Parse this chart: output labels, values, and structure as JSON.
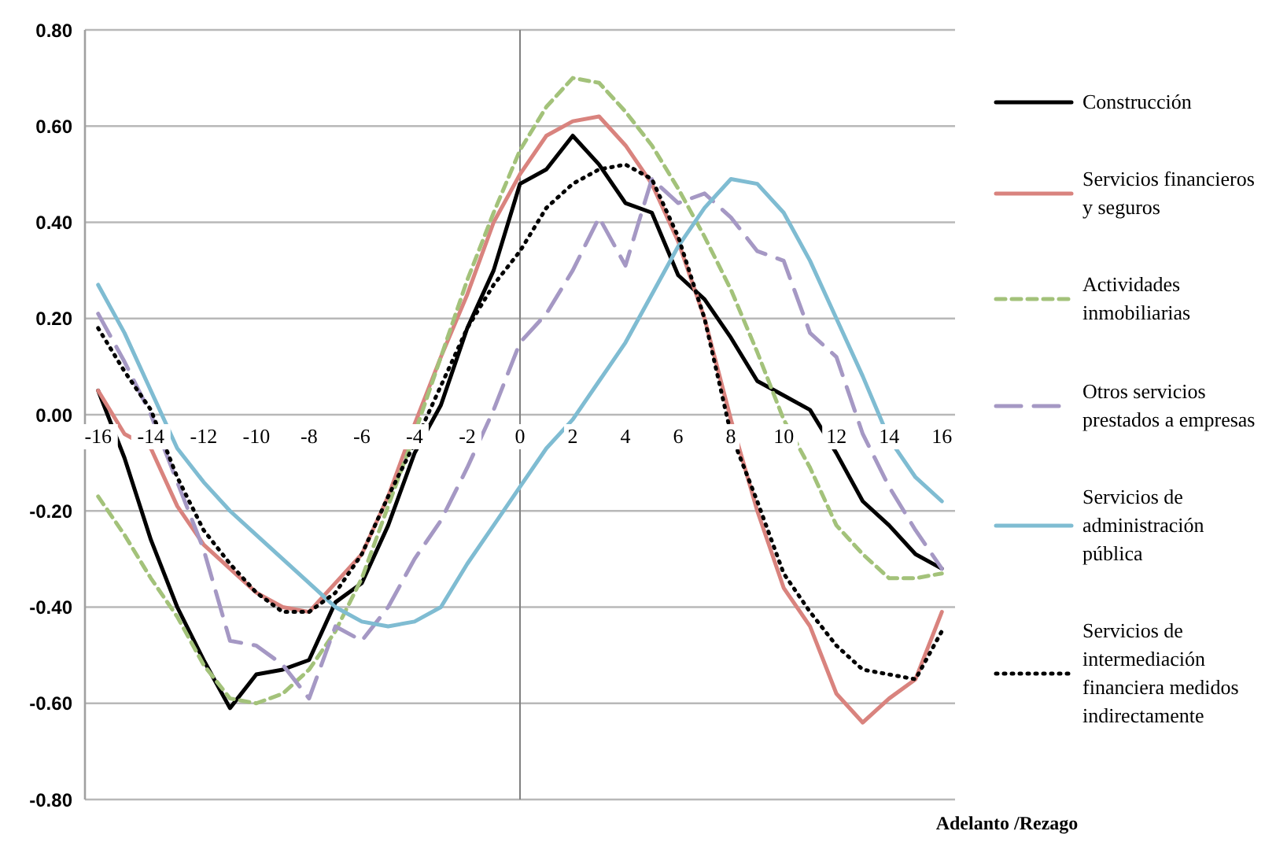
{
  "chart_data": {
    "type": "line",
    "xlabel": "Adelanto /Rezago",
    "x": [
      -16,
      -15,
      -14,
      -13,
      -12,
      -11,
      -10,
      -9,
      -8,
      -7,
      -6,
      -5,
      -4,
      -3,
      -2,
      -1,
      0,
      1,
      2,
      3,
      4,
      5,
      6,
      7,
      8,
      9,
      10,
      11,
      12,
      13,
      14,
      15,
      16
    ],
    "xlim": [
      -16.5,
      16.5
    ],
    "xticks": [
      -16,
      -14,
      -12,
      -10,
      -8,
      -6,
      -4,
      -2,
      0,
      2,
      4,
      6,
      8,
      10,
      12,
      14,
      16
    ],
    "ylim": [
      -0.8,
      0.8
    ],
    "yticks": [
      {
        "value": -0.8,
        "label": "-0.80"
      },
      {
        "value": -0.6,
        "label": "-0.60"
      },
      {
        "value": -0.4,
        "label": "-0.40"
      },
      {
        "value": -0.2,
        "label": "-0.20"
      },
      {
        "value": 0,
        "label": "0.00"
      },
      {
        "value": 0.2,
        "label": "0.20"
      },
      {
        "value": 0.4,
        "label": "0.40"
      },
      {
        "value": 0.6,
        "label": "0.60"
      },
      {
        "value": 0.8,
        "label": "0.80"
      }
    ],
    "grid": "y",
    "legend": "right",
    "marker": "none",
    "ref_lines": [
      {
        "axis": "x",
        "value": 0,
        "color": "#808080"
      }
    ],
    "series": [
      {
        "name": "Construcción",
        "color": "#000000",
        "line_style": "solid",
        "values": [
          0.05,
          -0.09,
          -0.26,
          -0.4,
          -0.51,
          -0.61,
          -0.54,
          -0.53,
          -0.51,
          -0.39,
          -0.35,
          -0.23,
          -0.08,
          0.02,
          0.18,
          0.3,
          0.48,
          0.51,
          0.58,
          0.52,
          0.44,
          0.42,
          0.29,
          0.24,
          0.16,
          0.07,
          0.04,
          0.01,
          -0.08,
          -0.18,
          -0.23,
          -0.29,
          -0.32
        ]
      },
      {
        "name": "Servicios financieros y seguros",
        "color": "#d9837e",
        "line_style": "solid",
        "values": [
          0.05,
          -0.04,
          -0.07,
          -0.19,
          -0.27,
          -0.32,
          -0.37,
          -0.4,
          -0.41,
          -0.35,
          -0.29,
          -0.17,
          -0.02,
          0.12,
          0.25,
          0.4,
          0.5,
          0.58,
          0.61,
          0.62,
          0.56,
          0.48,
          0.36,
          0.2,
          -0.01,
          -0.2,
          -0.36,
          -0.44,
          -0.58,
          -0.64,
          -0.59,
          -0.55,
          -0.41
        ]
      },
      {
        "name": "Actividades inmobiliarias",
        "color": "#a3c27a",
        "line_style": "dashed",
        "values": [
          -0.17,
          -0.25,
          -0.34,
          -0.42,
          -0.52,
          -0.59,
          -0.6,
          -0.58,
          -0.53,
          -0.45,
          -0.34,
          -0.19,
          -0.04,
          0.12,
          0.28,
          0.42,
          0.55,
          0.64,
          0.7,
          0.69,
          0.63,
          0.56,
          0.47,
          0.37,
          0.26,
          0.13,
          -0.01,
          -0.11,
          -0.23,
          -0.29,
          -0.34,
          -0.34,
          -0.33
        ]
      },
      {
        "name": "Otros servicios prestados a empresas",
        "color": "#a598c4",
        "line_style": "longdash",
        "values": [
          0.21,
          0.11,
          0.0,
          -0.14,
          -0.28,
          -0.47,
          -0.48,
          -0.52,
          -0.59,
          -0.44,
          -0.47,
          -0.4,
          -0.3,
          -0.22,
          -0.11,
          0.01,
          0.15,
          0.21,
          0.3,
          0.41,
          0.31,
          0.49,
          0.44,
          0.46,
          0.41,
          0.34,
          0.32,
          0.17,
          0.12,
          -0.04,
          -0.15,
          -0.24,
          -0.32
        ]
      },
      {
        "name": " Servicios de administración pública",
        "color": "#7fbcd2",
        "line_style": "solid",
        "values": [
          0.27,
          0.17,
          0.05,
          -0.07,
          -0.14,
          -0.2,
          -0.25,
          -0.3,
          -0.35,
          -0.4,
          -0.43,
          -0.44,
          -0.43,
          -0.4,
          -0.31,
          -0.23,
          -0.15,
          -0.07,
          -0.01,
          0.07,
          0.15,
          0.25,
          0.35,
          0.43,
          0.49,
          0.48,
          0.42,
          0.32,
          0.2,
          0.08,
          -0.05,
          -0.13,
          -0.18
        ]
      },
      {
        "name": "Servicios de intermediación financiera medidos indirectamente",
        "color": "#000000",
        "line_style": "dotted",
        "values": [
          0.18,
          0.09,
          0.01,
          -0.13,
          -0.24,
          -0.31,
          -0.37,
          -0.41,
          -0.41,
          -0.37,
          -0.29,
          -0.17,
          -0.06,
          0.06,
          0.18,
          0.27,
          0.34,
          0.43,
          0.48,
          0.51,
          0.52,
          0.49,
          0.37,
          0.2,
          -0.04,
          -0.18,
          -0.33,
          -0.41,
          -0.48,
          -0.53,
          -0.54,
          -0.55,
          -0.45
        ]
      }
    ]
  }
}
